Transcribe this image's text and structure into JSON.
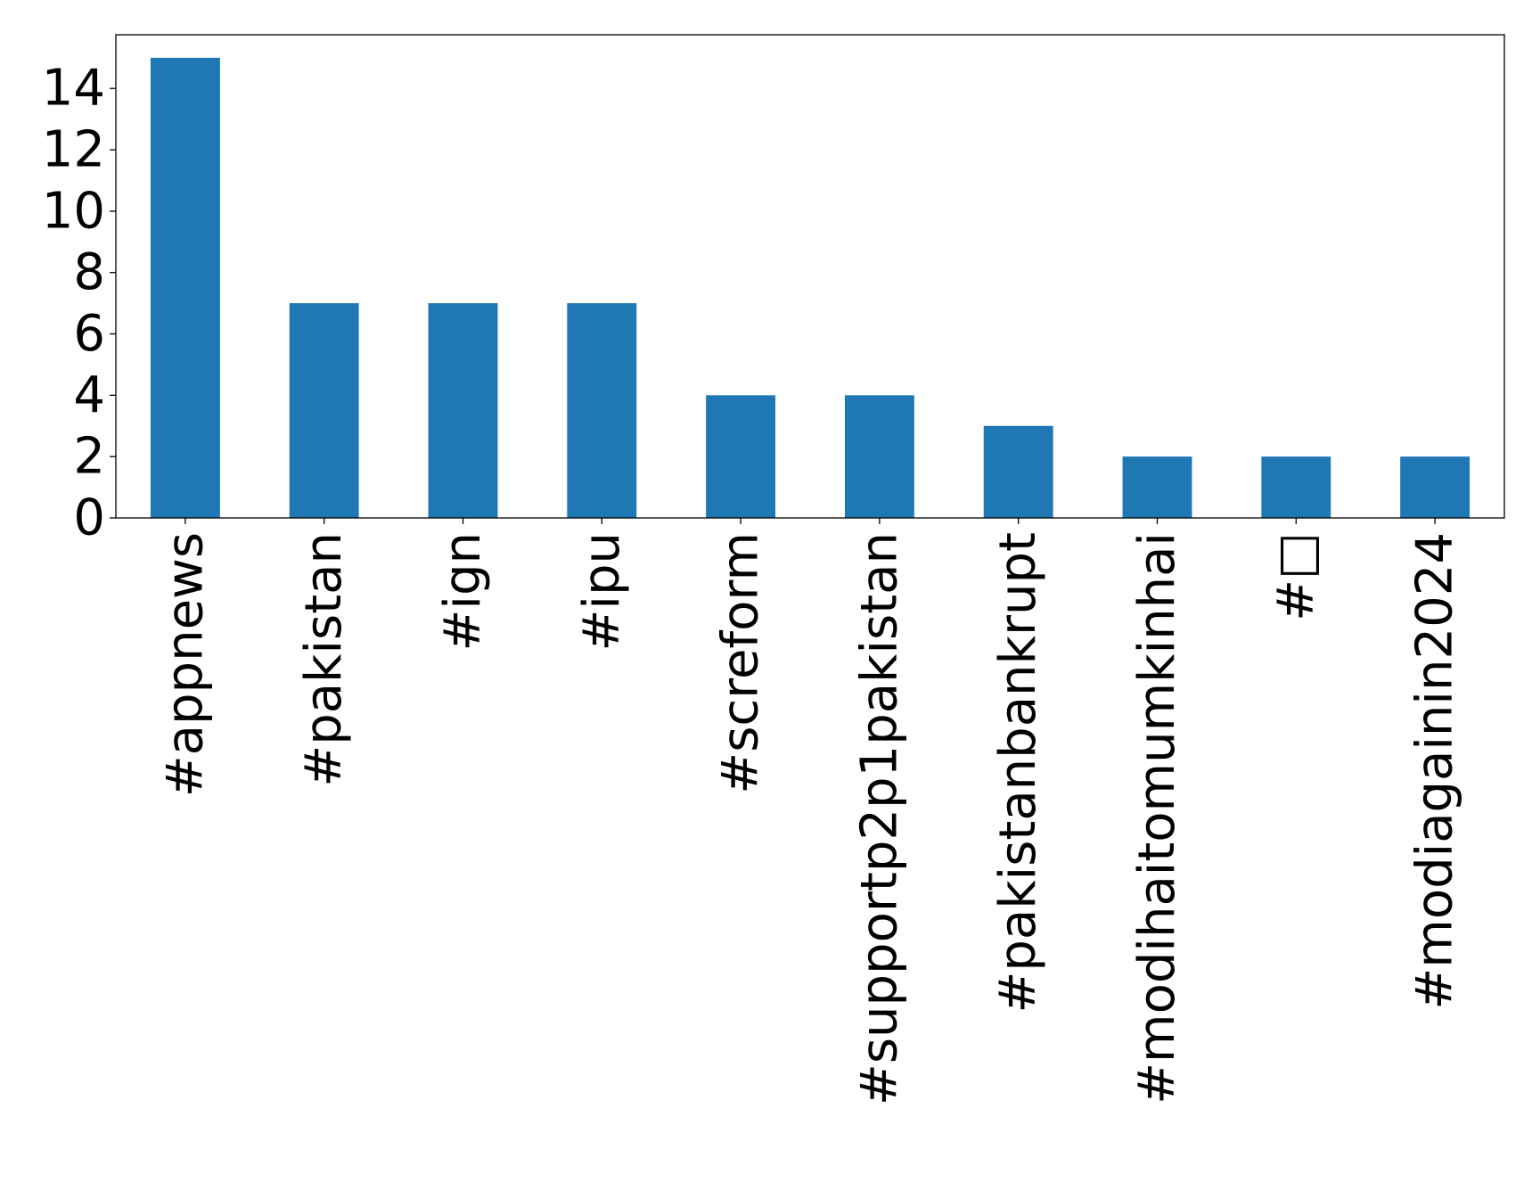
{
  "chart_data": {
    "type": "bar",
    "categories": [
      "#appnews",
      "#pakistan",
      "#ign",
      "#ipu",
      "#screform",
      "#supportp2p1pakistan",
      "#pakistanbankrupt",
      "#modihaitomumkinhai",
      "#□",
      "#modiagainin2024"
    ],
    "values": [
      15,
      7,
      7,
      7,
      4,
      4,
      3,
      2,
      2,
      2
    ],
    "ylim": [
      0,
      15.75
    ],
    "yticks": [
      0,
      2,
      4,
      6,
      8,
      10,
      12,
      14
    ],
    "bar_color": "#1f77b4",
    "grid": false,
    "legend": "none",
    "title": "",
    "xlabel": "",
    "ylabel": ""
  }
}
